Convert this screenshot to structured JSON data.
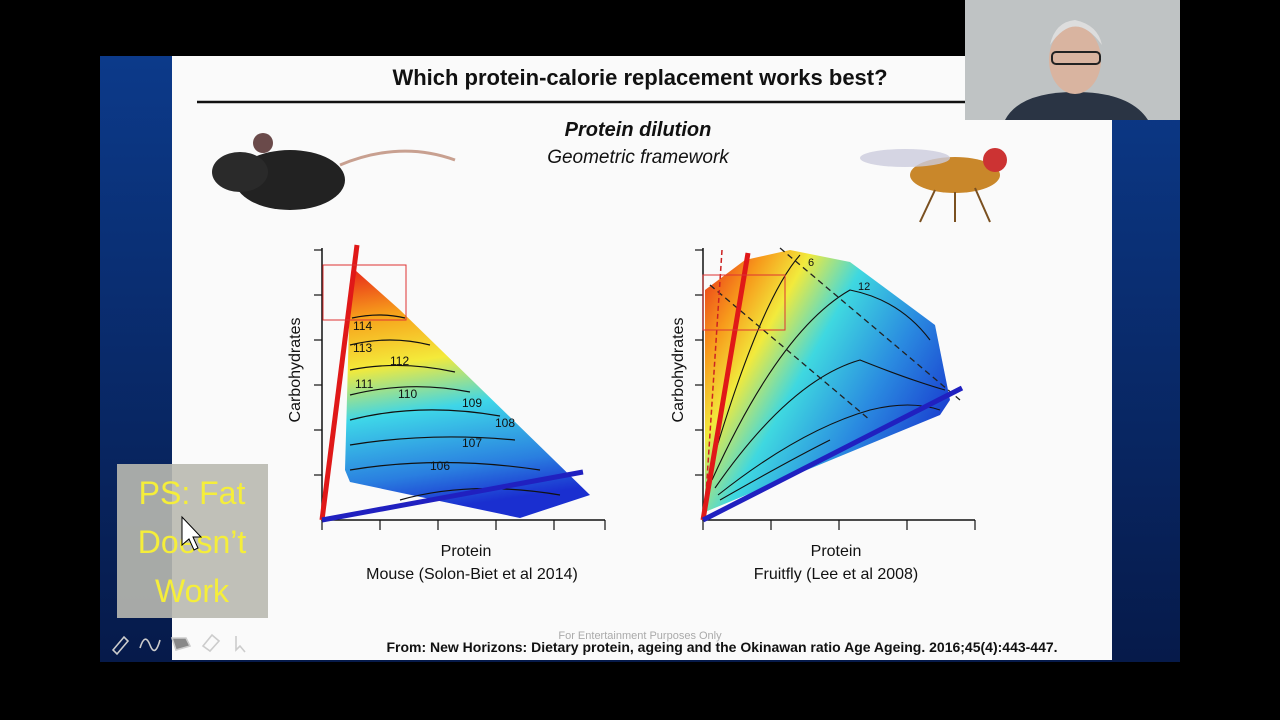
{
  "slide": {
    "title": "Which protein-calorie replacement works best?",
    "subtitle_bold": "Protein dilution",
    "subtitle": "Geometric framework",
    "panels": [
      {
        "y_label": "Carbohydrates",
        "x_label": "Protein",
        "caption": "Mouse (Solon-Biet et al 2014)",
        "contour_labels": [
          "114",
          "113",
          "112",
          "111",
          "110",
          "109",
          "108",
          "107",
          "106"
        ]
      },
      {
        "y_label": "Carbohydrates",
        "x_label": "Protein",
        "caption": "Fruitfly (Lee et al 2008)",
        "contour_labels": [
          "6",
          "12"
        ]
      }
    ],
    "watermark": "For Entertainment Purposes Only",
    "citation": "From: New Horizons: Dietary protein, ageing and the Okinawan ratio Age Ageing. 2016;45(4):443-447."
  },
  "overlay": {
    "note_lines": [
      "PS: Fat",
      "Doesn’t",
      "Work"
    ]
  }
}
